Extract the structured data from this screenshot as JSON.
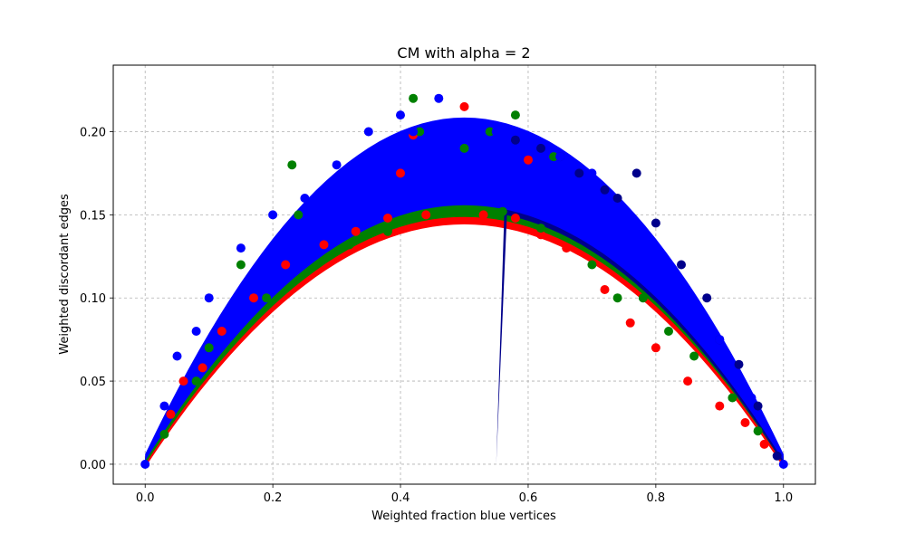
{
  "chart_data": {
    "type": "scatter",
    "title": "CM with alpha = 2",
    "xlabel": "Weighted fraction blue vertices",
    "ylabel": "Weighted discordant edges",
    "xlim": [
      -0.05,
      1.05
    ],
    "ylim": [
      -0.012,
      0.24
    ],
    "xticks": [
      0.0,
      0.2,
      0.4,
      0.6,
      0.8,
      1.0
    ],
    "xtick_labels": [
      "0.0",
      "0.2",
      "0.4",
      "0.6",
      "0.8",
      "1.0"
    ],
    "yticks": [
      0.0,
      0.05,
      0.1,
      0.15,
      0.2
    ],
    "ytick_labels": [
      "0.00",
      "0.05",
      "0.10",
      "0.15",
      "0.20"
    ],
    "grid": true,
    "grid_style": "dashed",
    "legend": "none",
    "colors": [
      "#ff0000",
      "#008000",
      "#00008b",
      "#0000ff"
    ],
    "series": [
      {
        "color": "#ff0000",
        "x": [
          0.04,
          0.06,
          0.09,
          0.12,
          0.17,
          0.22,
          0.28,
          0.33,
          0.38,
          0.4,
          0.42,
          0.44,
          0.5,
          0.53,
          0.58,
          0.6,
          0.62,
          0.66,
          0.72,
          0.76,
          0.8,
          0.85,
          0.9,
          0.94,
          0.97
        ],
        "y": [
          0.03,
          0.05,
          0.058,
          0.08,
          0.1,
          0.12,
          0.132,
          0.14,
          0.148,
          0.175,
          0.198,
          0.15,
          0.215,
          0.15,
          0.148,
          0.183,
          0.138,
          0.13,
          0.105,
          0.085,
          0.07,
          0.05,
          0.035,
          0.025,
          0.012
        ]
      },
      {
        "color": "#008000",
        "x": [
          0.03,
          0.08,
          0.1,
          0.15,
          0.19,
          0.23,
          0.24,
          0.32,
          0.38,
          0.42,
          0.43,
          0.5,
          0.54,
          0.56,
          0.58,
          0.62,
          0.64,
          0.7,
          0.74,
          0.78,
          0.82,
          0.86,
          0.92,
          0.96
        ],
        "y": [
          0.018,
          0.05,
          0.07,
          0.12,
          0.1,
          0.18,
          0.15,
          0.132,
          0.14,
          0.22,
          0.2,
          0.19,
          0.2,
          0.152,
          0.21,
          0.142,
          0.185,
          0.12,
          0.1,
          0.1,
          0.08,
          0.065,
          0.04,
          0.02
        ]
      },
      {
        "color": "#00008b",
        "x": [
          0.58,
          0.62,
          0.65,
          0.68,
          0.72,
          0.74,
          0.77,
          0.8,
          0.84,
          0.88,
          0.9,
          0.93,
          0.96,
          0.99
        ],
        "y": [
          0.195,
          0.19,
          0.185,
          0.175,
          0.165,
          0.16,
          0.175,
          0.145,
          0.12,
          0.1,
          0.075,
          0.06,
          0.035,
          0.005
        ]
      },
      {
        "color": "#0000ff",
        "x": [
          0.0,
          0.03,
          0.05,
          0.08,
          0.1,
          0.15,
          0.2,
          0.25,
          0.3,
          0.35,
          0.4,
          0.42,
          0.46,
          0.5,
          0.55,
          0.6,
          0.65,
          0.7,
          0.75,
          0.8,
          0.85,
          0.88,
          0.9,
          0.95,
          1.0
        ],
        "y": [
          0.0,
          0.035,
          0.065,
          0.08,
          0.1,
          0.13,
          0.15,
          0.16,
          0.18,
          0.2,
          0.21,
          0.2,
          0.22,
          0.2,
          0.2,
          0.195,
          0.185,
          0.175,
          0.135,
          0.11,
          0.1,
          0.085,
          0.075,
          0.04,
          0.0
        ]
      }
    ]
  }
}
